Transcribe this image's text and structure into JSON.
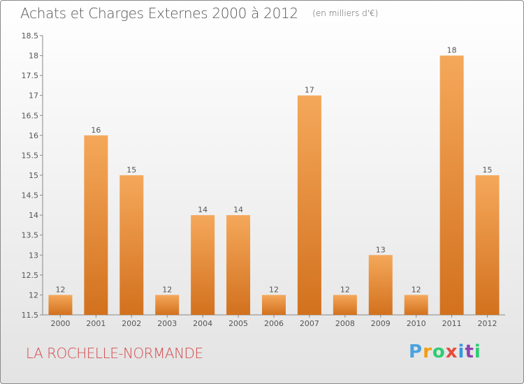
{
  "header": {
    "title": "Achats et Charges Externes 2000 à 2012",
    "unit": "(en milliers d'€)"
  },
  "footer": {
    "commune": "LA ROCHELLE-NORMANDE",
    "logo": {
      "letters": [
        "P",
        "r",
        "o",
        "x",
        "i",
        "t",
        "i"
      ],
      "colors": [
        "#4aa3df",
        "#f39c12",
        "#2ecc71",
        "#e74c3c",
        "#3498db",
        "#8e44ad",
        "#2ecc71"
      ]
    }
  },
  "colors": {
    "bar_light": "#f5a85a",
    "bar_dark": "#d2711e",
    "commune": "#d5494b"
  },
  "chart_data": {
    "type": "bar",
    "categories": [
      "2000",
      "2001",
      "2002",
      "2003",
      "2004",
      "2005",
      "2006",
      "2007",
      "2008",
      "2009",
      "2010",
      "2011",
      "2012"
    ],
    "values": [
      12,
      16,
      15,
      12,
      14,
      14,
      12,
      17,
      12,
      13,
      12,
      18,
      15
    ],
    "data_labels": [
      "12",
      "16",
      "15",
      "12",
      "14",
      "14",
      "12",
      "17",
      "12",
      "13",
      "12",
      "18",
      "15"
    ],
    "ylim": [
      11.5,
      18.5
    ],
    "yticks": [
      11.5,
      12,
      12.5,
      13,
      13.5,
      14,
      14.5,
      15,
      15.5,
      16,
      16.5,
      17,
      17.5,
      18,
      18.5
    ],
    "ytick_labels": [
      "11.5",
      "12",
      "12.5",
      "13",
      "13.5",
      "14",
      "14.5",
      "15",
      "15.5",
      "16",
      "16.5",
      "17",
      "17.5",
      "18",
      "18.5"
    ],
    "grid": false,
    "legend": "none"
  }
}
